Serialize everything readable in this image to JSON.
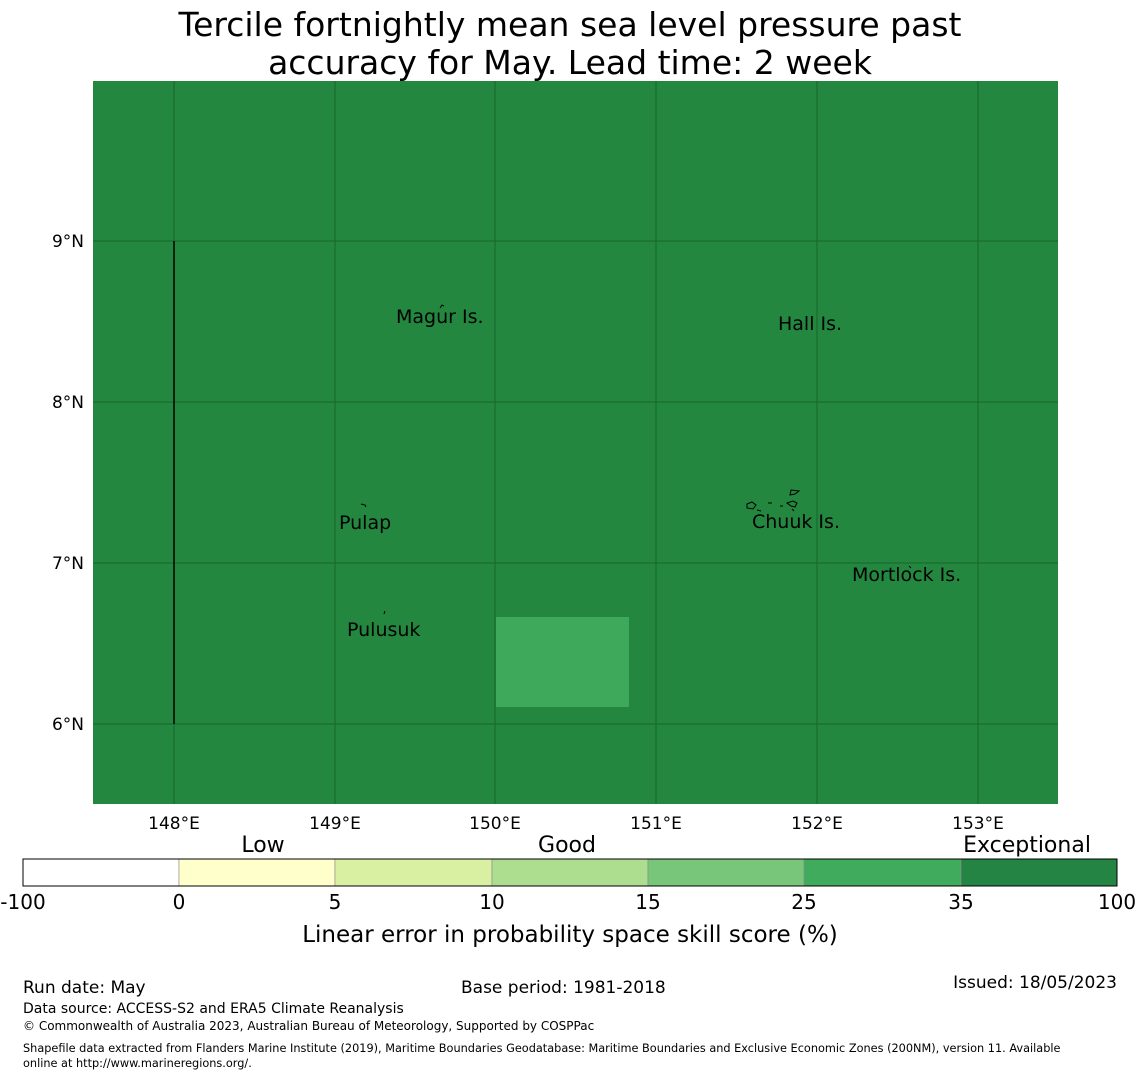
{
  "title": {
    "line1": "Tercile fortnightly mean sea level pressure past",
    "line2": "accuracy for May. Lead time: 2 week"
  },
  "map": {
    "background_color": "#23873f",
    "highlight_color": "#3fa95b",
    "lon_ticks": [
      "148°E",
      "149°E",
      "150°E",
      "151°E",
      "152°E",
      "153°E"
    ],
    "lat_ticks": [
      "9°N",
      "8°N",
      "7°N",
      "6°N"
    ],
    "places": [
      {
        "name": "Magur Is."
      },
      {
        "name": "Hall Is."
      },
      {
        "name": "Pulap"
      },
      {
        "name": "Chuuk Is."
      },
      {
        "name": "Mortlock Is."
      },
      {
        "name": "Pulusuk"
      }
    ]
  },
  "legend": {
    "categories": [
      "Low",
      "Good",
      "Exceptional"
    ],
    "boundaries": [
      "-100",
      "0",
      "5",
      "10",
      "15",
      "25",
      "35",
      "100"
    ],
    "colors": [
      "#ffffff",
      "#ffffcc",
      "#d9f0a3",
      "#addd8e",
      "#78c679",
      "#41ab5d",
      "#238443"
    ],
    "label": "Linear error in probability space skill score (%)"
  },
  "footer": {
    "run_date": "Run date: May",
    "base_period": "Base period: 1981-2018",
    "issued": "Issued: 18/05/2023",
    "data_source": "Data source: ACCESS-S2 and ERA5 Climate Reanalysis",
    "copyright": "© Commonwealth of Australia 2023, Australian Bureau of Meteorology, Supported by COSPPac",
    "shapefile_line1": "Shapefile data extracted from Flanders Marine Institute (2019), Maritime Boundaries Geodatabase: Maritime Boundaries and Exclusive Economic Zones (200NM), version 11. Available",
    "shapefile_line2": "online at http://www.marineregions.org/."
  }
}
